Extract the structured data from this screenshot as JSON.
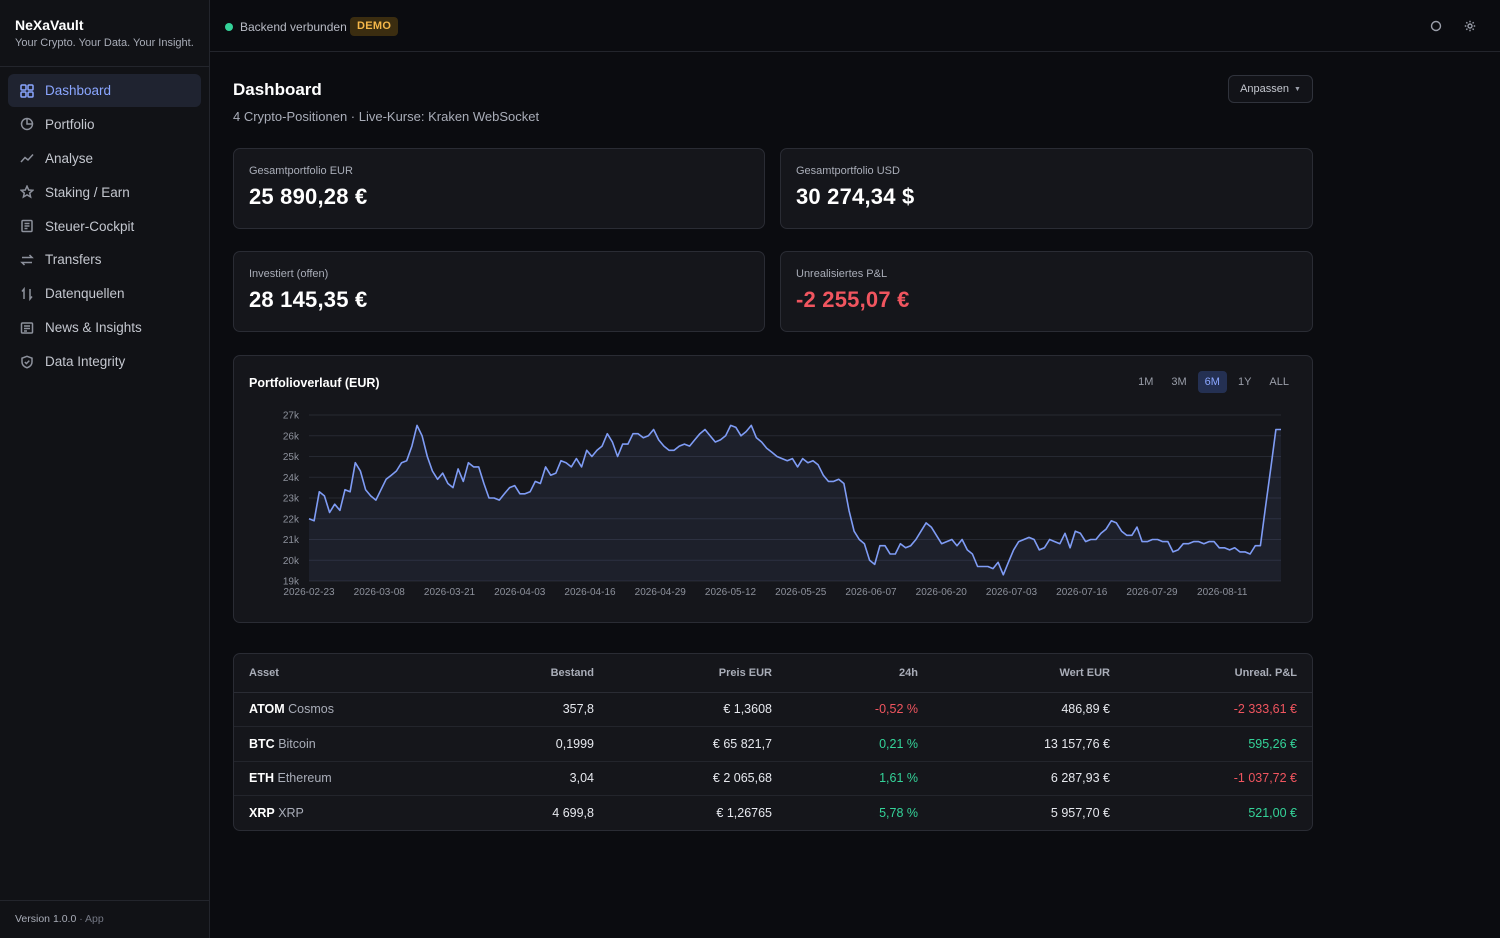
{
  "sidebar": {
    "brand_name": "NeXaVault",
    "brand_tagline": "Your Crypto. Your Data. Your Insight.",
    "items": [
      {
        "label": "Dashboard",
        "icon": "grid-icon",
        "active": true
      },
      {
        "label": "Portfolio",
        "icon": "pie-icon",
        "active": false
      },
      {
        "label": "Analyse",
        "icon": "trend-icon",
        "active": false
      },
      {
        "label": "Staking / Earn",
        "icon": "star-icon",
        "active": false
      },
      {
        "label": "Steuer-Cockpit",
        "icon": "document-icon",
        "active": false
      },
      {
        "label": "Transfers",
        "icon": "transfer-icon",
        "active": false
      },
      {
        "label": "Datenquellen",
        "icon": "sort-icon",
        "active": false
      },
      {
        "label": "News & Insights",
        "icon": "news-icon",
        "active": false
      },
      {
        "label": "Data Integrity",
        "icon": "shield-icon",
        "active": false
      }
    ],
    "version": "Version 1.0.0",
    "version_suffix": "· App"
  },
  "topbar": {
    "status_text": "Backend verbunden",
    "badge": "DEMO",
    "colors": {
      "status": "#34d399",
      "badge": "#f5b74a"
    }
  },
  "main": {
    "title": "Dashboard",
    "subtitle": "4 Crypto-Positionen · Live-Kurse: Kraken WebSocket",
    "customize_label": "Anpassen",
    "cards": [
      {
        "label": "Gesamtportfolio EUR",
        "value": "25 890,28 €"
      },
      {
        "label": "Gesamtportfolio USD",
        "value": "30 274,34 $"
      },
      {
        "label": "Investiert (offen)",
        "value": "28 145,35 €"
      },
      {
        "label": "Unrealisiertes P&L",
        "value": "-2 255,07 €"
      }
    ]
  },
  "chart": {
    "title": "Portfolioverlauf (EUR)",
    "ranges": [
      "1M",
      "3M",
      "6M",
      "1Y",
      "ALL"
    ],
    "active_range": "6M"
  },
  "chart_data": {
    "type": "area",
    "title": "Portfolioverlauf (EUR)",
    "xlabel": "",
    "ylabel": "",
    "ylim": [
      19000,
      27000
    ],
    "y_ticks": [
      "19k",
      "20k",
      "21k",
      "22k",
      "23k",
      "24k",
      "25k",
      "26k",
      "27k"
    ],
    "x_ticks": [
      "2026-02-23",
      "2026-03-08",
      "2026-03-21",
      "2026-04-03",
      "2026-04-16",
      "2026-04-29",
      "2026-05-12",
      "2026-05-25",
      "2026-06-07",
      "2026-06-20",
      "2026-07-03",
      "2026-07-16",
      "2026-07-29",
      "2026-08-11"
    ],
    "grid": true,
    "line_color": "#7f9cf5",
    "series": [
      {
        "values": [
          22000,
          21900,
          23300,
          23100,
          22300,
          22700,
          22400,
          23400,
          23300,
          24700,
          24300,
          23400,
          23100,
          22900,
          23400,
          23900,
          24100,
          24300,
          24700,
          24800,
          25500,
          26500,
          26000,
          25000,
          24300,
          23900,
          24200,
          23700,
          23500,
          24400,
          23800,
          24700,
          24500,
          24500,
          23700,
          23000,
          23000,
          22900,
          23200,
          23500,
          23600,
          23200,
          23200,
          23300,
          23800,
          23700,
          24500,
          24100,
          24200,
          24800,
          24700,
          24500,
          24900,
          24500,
          25300,
          25000,
          25300,
          25500,
          26100,
          25700,
          25000,
          25600,
          25600,
          26100,
          26100,
          25900,
          26000,
          26300,
          25800,
          25500,
          25300,
          25300,
          25500,
          25600,
          25500,
          25800,
          26100,
          26300,
          26000,
          25700,
          25800,
          26000,
          26500,
          26400,
          26000,
          26200,
          26500,
          25900,
          25700,
          25400,
          25200,
          25000,
          24900,
          24800,
          24900,
          24500,
          24900,
          24700,
          24800,
          24600,
          24100,
          23800,
          23800,
          23900,
          23700,
          22400,
          21400,
          21000,
          20800,
          20000,
          19800,
          20700,
          20700,
          20300,
          20300,
          20800,
          20600,
          20700,
          21000,
          21400,
          21800,
          21600,
          21200,
          20800,
          20900,
          21000,
          20700,
          21000,
          20500,
          20300,
          19700,
          19700,
          19700,
          19600,
          19900,
          19300,
          19900,
          20500,
          20900,
          21000,
          21100,
          21000,
          20500,
          20600,
          21000,
          20900,
          20800,
          21300,
          20600,
          21400,
          21300,
          20900,
          21000,
          21000,
          21300,
          21500,
          21900,
          21800,
          21400,
          21200,
          21200,
          21600,
          20900,
          20900,
          21000,
          21000,
          20900,
          20900,
          20400,
          20500,
          20800,
          20800,
          20900,
          20900,
          20800,
          20900,
          20900,
          20600,
          20600,
          20500,
          20600,
          20400,
          20400,
          20300,
          20700,
          20700,
          22600,
          24400,
          26300,
          26300
        ]
      }
    ]
  },
  "table": {
    "headers": [
      "Asset",
      "Bestand",
      "Preis EUR",
      "24h",
      "Wert EUR",
      "Unreal. P&L"
    ],
    "rows": [
      {
        "symbol": "ATOM",
        "name": "Cosmos",
        "amount": "357,8",
        "price": "€ 1,3608",
        "change": "-0,52 %",
        "change_dir": "neg",
        "value": "486,89 €",
        "pnl": "-2 333,61 €",
        "pnl_dir": "neg"
      },
      {
        "symbol": "BTC",
        "name": "Bitcoin",
        "amount": "0,1999",
        "price": "€ 65 821,7",
        "change": "0,21 %",
        "change_dir": "pos",
        "value": "13 157,76 €",
        "pnl": "595,26 €",
        "pnl_dir": "pos"
      },
      {
        "symbol": "ETH",
        "name": "Ethereum",
        "amount": "3,04",
        "price": "€ 2 065,68",
        "change": "1,61 %",
        "change_dir": "pos",
        "value": "6 287,93 €",
        "pnl": "-1 037,72 €",
        "pnl_dir": "neg"
      },
      {
        "symbol": "XRP",
        "name": "XRP",
        "amount": "4 699,8",
        "price": "€ 1,26765",
        "change": "5,78 %",
        "change_dir": "pos",
        "value": "5 957,70 €",
        "pnl": "521,00 €",
        "pnl_dir": "pos"
      }
    ]
  }
}
